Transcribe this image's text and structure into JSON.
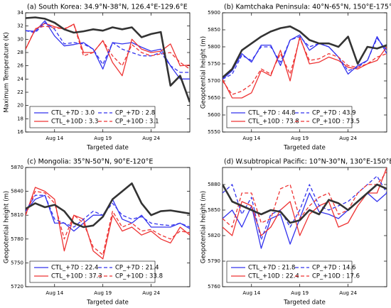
{
  "chart_data": [
    {
      "type": "line",
      "title": "(a) South Korea: 34.9°N-38°N, 126.4°E-129.6°E",
      "x_label": "Targeted date",
      "y_label": "Maximum Temperature (K)",
      "categories": [
        null,
        null,
        null,
        "Aug 14",
        null,
        null,
        null,
        null,
        "Aug 19",
        null,
        null,
        null,
        null,
        "Aug 24",
        null,
        null,
        null,
        null
      ],
      "ylim": [
        16,
        34
      ],
      "yticks": [
        16,
        18,
        20,
        22,
        24,
        26,
        28,
        30,
        32,
        34
      ],
      "legend": "lower left",
      "series": [
        {
          "name": "CTL_+7D : 3.0",
          "color": "#3333ee",
          "linestyle": "solid",
          "values": [
            31.3,
            31.2,
            32.8,
            30.5,
            29.0,
            29.2,
            29.5,
            28.5,
            25.5,
            29.5,
            29.3,
            29.5,
            28.8,
            28.2,
            28.5,
            26.0,
            24.0,
            24.0
          ]
        },
        {
          "name": "CTL_+10D : 3.3",
          "color": "#ee3333",
          "linestyle": "solid",
          "values": [
            28.5,
            31.5,
            32.4,
            31.9,
            31.5,
            32.3,
            28.0,
            28.0,
            29.8,
            26.5,
            24.5,
            30.0,
            28.5,
            28.0,
            28.2,
            29.3,
            26.0,
            26.1
          ]
        },
        {
          "name": "CP_+7D : 2.8",
          "color": "#3333ee",
          "linestyle": "dashed",
          "values": [
            31.3,
            31.0,
            32.5,
            31.5,
            29.3,
            29.5,
            29.3,
            28.5,
            26.2,
            29.5,
            28.5,
            28.0,
            27.5,
            27.5,
            28.0,
            26.0,
            25.0,
            25.0
          ]
        },
        {
          "name": "CP_+10D : 3.1",
          "color": "#ee3333",
          "linestyle": "dashed",
          "values": [
            28.5,
            31.6,
            32.0,
            31.7,
            31.6,
            32.2,
            27.5,
            28.0,
            29.8,
            27.5,
            26.0,
            29.2,
            28.0,
            27.5,
            27.8,
            28.0,
            26.5,
            25.5
          ]
        },
        {
          "color": "#333333",
          "linestyle": "solid",
          "linewidth": 2.6,
          "values": [
            33.2,
            33.3,
            33.1,
            32.5,
            31.5,
            31.0,
            31.2,
            31.5,
            31.3,
            31.8,
            31.5,
            31.8,
            30.3,
            30.8,
            31.1,
            23.0,
            24.5,
            20.5
          ]
        }
      ]
    },
    {
      "type": "line",
      "title": "(b) Kamtchaka Peninsula: 40°N-65°N, 150°E-175°E",
      "x_label": "Targeted date",
      "y_label": "Geopotential height (m)",
      "categories": [
        null,
        null,
        null,
        "Aug 14",
        null,
        null,
        null,
        null,
        "Aug 19",
        null,
        null,
        null,
        null,
        "Aug 24",
        null,
        null,
        null,
        null
      ],
      "ylim": [
        5550,
        5900
      ],
      "yticks": [
        5550,
        5600,
        5650,
        5700,
        5750,
        5800,
        5850,
        5900
      ],
      "legend": "lower left",
      "series": [
        {
          "name": "CTL_+7D : 44.8",
          "color": "#3333ee",
          "linestyle": "solid",
          "values": [
            5705,
            5730,
            5780,
            5755,
            5805,
            5805,
            5745,
            5820,
            5835,
            5790,
            5810,
            5800,
            5770,
            5720,
            5745,
            5760,
            5830,
            5780
          ]
        },
        {
          "name": "CTL_+10D : 73.8",
          "color": "#ee3333",
          "linestyle": "solid",
          "values": [
            5705,
            5650,
            5650,
            5665,
            5730,
            5715,
            5790,
            5700,
            5830,
            5750,
            5755,
            5770,
            5760,
            5740,
            5735,
            5750,
            5760,
            5800
          ]
        },
        {
          "name": "CP_+7D : 43.9",
          "color": "#3333ee",
          "linestyle": "dashed",
          "values": [
            5705,
            5720,
            5775,
            5760,
            5800,
            5800,
            5755,
            5820,
            5830,
            5800,
            5810,
            5800,
            5770,
            5730,
            5740,
            5760,
            5825,
            5790
          ]
        },
        {
          "name": "CP_+10D : 73.5",
          "color": "#ee3333",
          "linestyle": "dashed",
          "values": [
            5700,
            5660,
            5670,
            5690,
            5735,
            5720,
            5780,
            5720,
            5825,
            5760,
            5765,
            5780,
            5770,
            5745,
            5740,
            5750,
            5770,
            5780
          ]
        },
        {
          "color": "#333333",
          "linestyle": "solid",
          "linewidth": 2.6,
          "values": [
            5710,
            5735,
            5790,
            5810,
            5830,
            5845,
            5855,
            5860,
            5845,
            5820,
            5810,
            5810,
            5800,
            5830,
            5750,
            5800,
            5795,
            5805
          ]
        }
      ]
    },
    {
      "type": "line",
      "title": "(c) Mongolia: 35°N-50°N, 90°E-120°E",
      "x_label": "Targeted date",
      "y_label": "Geopotential height (m)",
      "categories": [
        null,
        null,
        null,
        "Aug 14",
        null,
        null,
        null,
        null,
        "Aug 19",
        null,
        null,
        null,
        null,
        "Aug 24",
        null,
        null,
        null,
        null
      ],
      "ylim": [
        5720,
        5870
      ],
      "yticks": [
        5720,
        5750,
        5780,
        5810,
        5840,
        5870
      ],
      "legend": "lower left",
      "series": [
        {
          "name": "CTL_+7D : 22.4",
          "color": "#3333ee",
          "linestyle": "solid",
          "values": [
            5815,
            5830,
            5835,
            5800,
            5800,
            5790,
            5800,
            5810,
            5810,
            5830,
            5805,
            5800,
            5810,
            5795,
            5795,
            5795,
            5800,
            5793
          ]
        },
        {
          "name": "CTL_+10D : 37.3",
          "color": "#ee3333",
          "linestyle": "solid",
          "values": [
            5810,
            5845,
            5840,
            5830,
            5765,
            5810,
            5805,
            5765,
            5755,
            5810,
            5790,
            5795,
            5785,
            5790,
            5780,
            5775,
            5795,
            5785
          ]
        },
        {
          "name": "CP_+7D : 21.4",
          "color": "#3333ee",
          "linestyle": "dashed",
          "values": [
            5815,
            5835,
            5835,
            5805,
            5800,
            5795,
            5805,
            5815,
            5810,
            5825,
            5810,
            5805,
            5808,
            5800,
            5798,
            5797,
            5800,
            5795
          ]
        },
        {
          "name": "CP_+10D : 33.8",
          "color": "#ee3333",
          "linestyle": "dashed",
          "values": [
            5810,
            5840,
            5838,
            5825,
            5780,
            5810,
            5800,
            5770,
            5760,
            5815,
            5795,
            5800,
            5790,
            5792,
            5785,
            5780,
            5790,
            5788
          ]
        },
        {
          "color": "#333333",
          "linestyle": "solid",
          "linewidth": 2.6,
          "values": [
            5818,
            5825,
            5820,
            5823,
            5815,
            5800,
            5795,
            5797,
            5808,
            5830,
            5840,
            5850,
            5825,
            5810,
            5815,
            5816,
            5814,
            5812
          ]
        }
      ]
    },
    {
      "type": "line",
      "title": "(d) W.subtropical Pacific: 10°N-30°N, 130°E-150°E",
      "x_label": "Targeted date",
      "y_label": "Geopotential height (m)",
      "categories": [
        null,
        null,
        null,
        "Aug 14",
        null,
        null,
        null,
        null,
        "Aug 19",
        null,
        null,
        null,
        null,
        "Aug 24",
        null,
        null,
        null,
        null
      ],
      "ylim": [
        5760,
        5900
      ],
      "yticks": [
        5760,
        5790,
        5820,
        5850,
        5880
      ],
      "legend": "lower left",
      "series": [
        {
          "name": "CTL_+7D : 21.8",
          "color": "#3333ee",
          "linestyle": "solid",
          "values": [
            5840,
            5850,
            5830,
            5855,
            5805,
            5840,
            5845,
            5810,
            5840,
            5870,
            5848,
            5845,
            5840,
            5850,
            5860,
            5870,
            5860,
            5870
          ]
        },
        {
          "name": "CTL_+10D : 22.4",
          "color": "#ee3333",
          "linestyle": "solid",
          "values": [
            5830,
            5820,
            5860,
            5855,
            5820,
            5830,
            5850,
            5860,
            5820,
            5845,
            5855,
            5860,
            5830,
            5835,
            5855,
            5870,
            5870,
            5900
          ]
        },
        {
          "name": "CP_+7D : 14.6",
          "color": "#3333ee",
          "linestyle": "dashed",
          "values": [
            5870,
            5880,
            5845,
            5865,
            5815,
            5845,
            5850,
            5830,
            5850,
            5880,
            5855,
            5850,
            5855,
            5860,
            5870,
            5880,
            5890,
            5870
          ]
        },
        {
          "name": "CP_+10D : 17.6",
          "color": "#ee3333",
          "linestyle": "dashed",
          "values": [
            5840,
            5830,
            5870,
            5870,
            5835,
            5840,
            5875,
            5880,
            5840,
            5855,
            5865,
            5870,
            5845,
            5850,
            5870,
            5880,
            5880,
            5895
          ]
        },
        {
          "color": "#333333",
          "linestyle": "solid",
          "linewidth": 2.6,
          "values": [
            5880,
            5860,
            5855,
            5850,
            5845,
            5850,
            5848,
            5835,
            5838,
            5850,
            5845,
            5862,
            5858,
            5850,
            5860,
            5870,
            5880,
            5875
          ]
        }
      ]
    }
  ]
}
